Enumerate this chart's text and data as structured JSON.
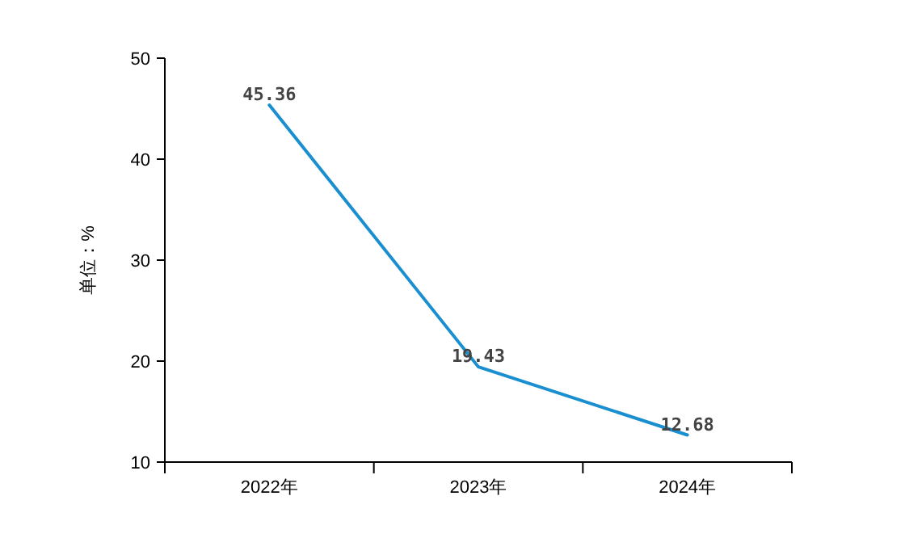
{
  "chart_data": {
    "type": "line",
    "ylabel": "单位：%",
    "categories": [
      "2022年",
      "2023年",
      "2024年"
    ],
    "values": [
      45.36,
      19.43,
      12.68
    ],
    "color": "#1a8fd0",
    "ylim": [
      10,
      50
    ],
    "yticks": [
      10,
      20,
      30,
      40,
      50
    ],
    "data_labels": true
  }
}
